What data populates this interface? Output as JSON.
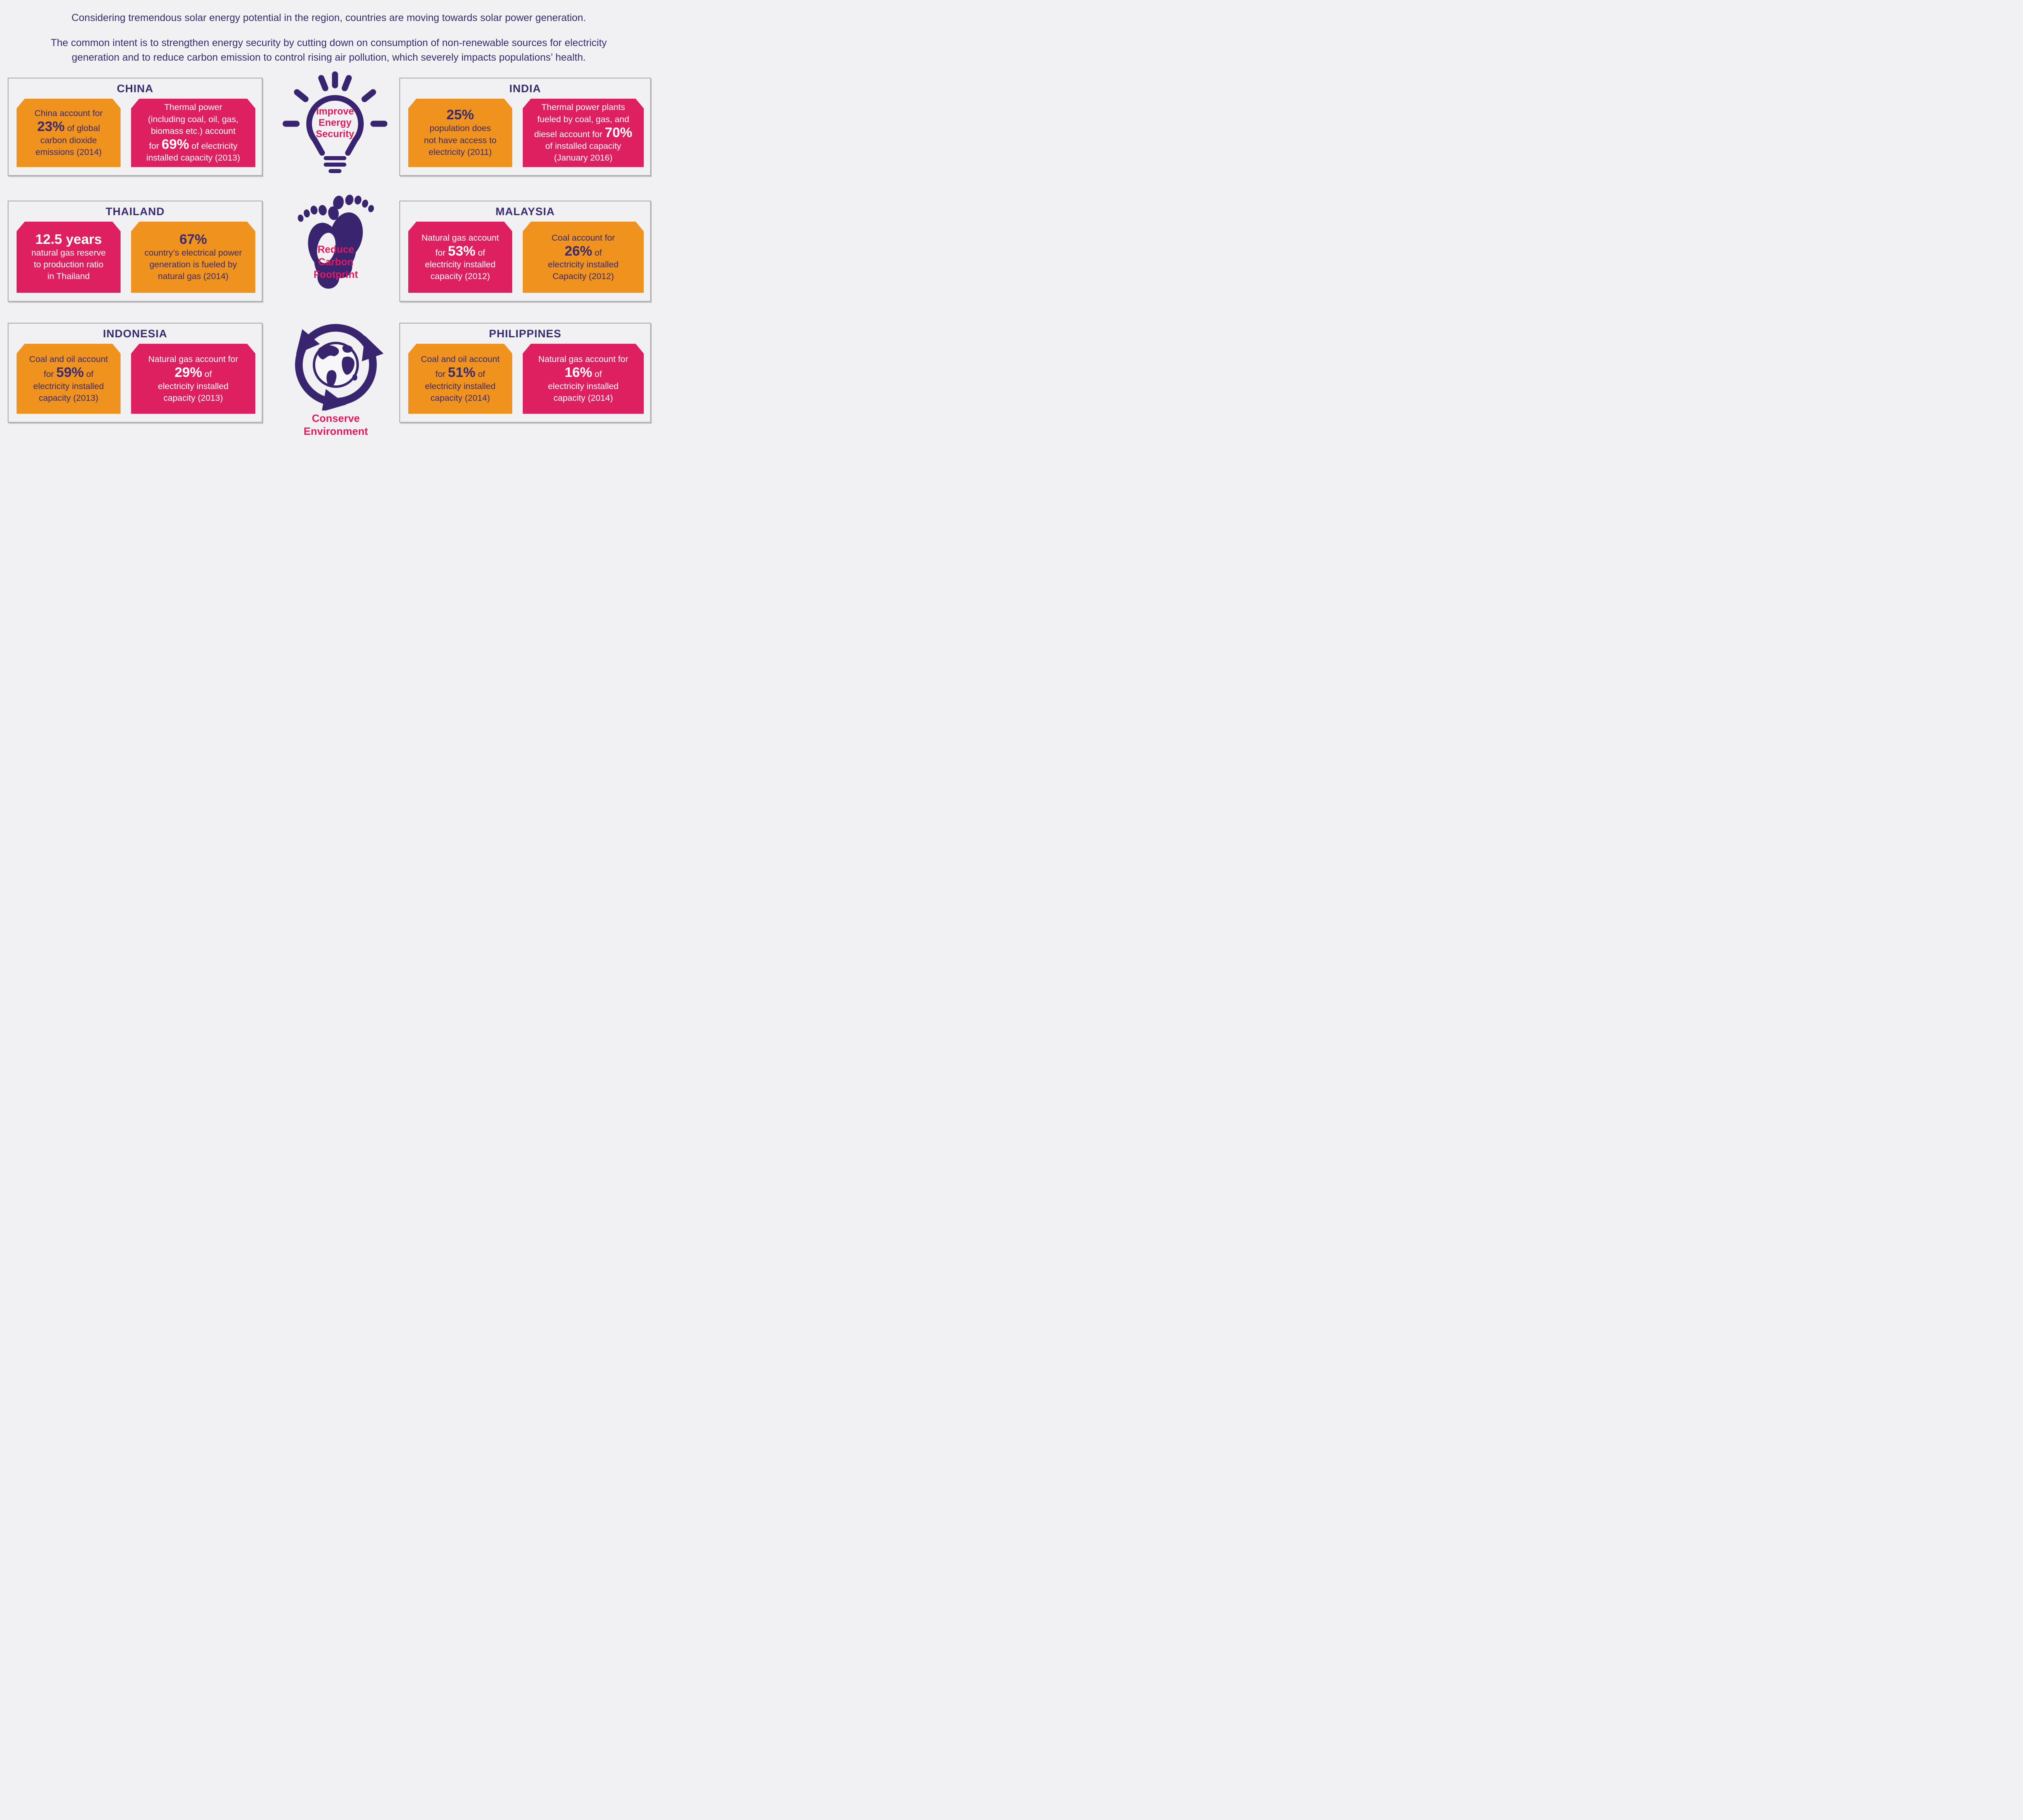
{
  "colors": {
    "background": "#f1f0f2",
    "orange_card": "#f0921e",
    "pink_card": "#de2061",
    "indigo_text": "#3a2a70",
    "purple_icon": "#392470",
    "pink_accent_text": "#e01a5f",
    "card_light_text": "#ffffff",
    "box_border": "#a9a9a9"
  },
  "intro": {
    "p1": "Considering tremendous solar energy potential in the region, countries are moving towards solar power generation.",
    "p2": "The common intent is to strengthen energy security by cutting down on consumption of non-renewable sources for electricity\ngeneration and to reduce carbon emission to control rising air pollution, which severely impacts populations’ health."
  },
  "center_icons": [
    {
      "icon": "light-bulb-icon",
      "label": "Improve\nEnergy\nSecurity"
    },
    {
      "icon": "footprints-icon",
      "label": "Reduce\nCarbon\nFootprint"
    },
    {
      "icon": "globe-arrows-icon",
      "label": "Conserve\nEnvironment"
    }
  ],
  "countries": [
    {
      "name": "CHINA",
      "cards": [
        {
          "color": "orange",
          "lines": [
            [
              {
                "t": "China account for"
              }
            ],
            [
              {
                "t": "23%",
                "b": true
              },
              {
                "t": " of global"
              }
            ],
            [
              {
                "t": "carbon dioxide"
              }
            ],
            [
              {
                "t": "emissions (2014)"
              }
            ]
          ]
        },
        {
          "color": "pink",
          "lines": [
            [
              {
                "t": "Thermal power"
              }
            ],
            [
              {
                "t": "(including coal, oil, gas,"
              }
            ],
            [
              {
                "t": "biomass etc.) account"
              }
            ],
            [
              {
                "t": "for "
              },
              {
                "t": "69%",
                "b": true
              },
              {
                "t": " of electricity"
              }
            ],
            [
              {
                "t": "installed capacity (2013)"
              }
            ]
          ]
        }
      ]
    },
    {
      "name": "INDIA",
      "cards": [
        {
          "color": "orange",
          "lines": [
            [
              {
                "t": "25%",
                "b": true
              }
            ],
            [
              {
                "t": "population does"
              }
            ],
            [
              {
                "t": "not have access to"
              }
            ],
            [
              {
                "t": "electricity (2011)"
              }
            ]
          ]
        },
        {
          "color": "pink",
          "lines": [
            [
              {
                "t": "Thermal power plants"
              }
            ],
            [
              {
                "t": "fueled by coal, gas, and"
              }
            ],
            [
              {
                "t": "diesel account for "
              },
              {
                "t": "70%",
                "b": true
              }
            ],
            [
              {
                "t": "of installed capacity"
              }
            ],
            [
              {
                "t": "(January 2016)"
              }
            ]
          ]
        }
      ]
    },
    {
      "name": "THAILAND",
      "cards": [
        {
          "color": "pink",
          "lines": [
            [
              {
                "t": "12.5 years",
                "b": true
              }
            ],
            [
              {
                "t": "natural gas reserve"
              }
            ],
            [
              {
                "t": "to production ratio"
              }
            ],
            [
              {
                "t": "in Thailand"
              }
            ]
          ]
        },
        {
          "color": "orange",
          "lines": [
            [
              {
                "t": "67%",
                "b": true
              }
            ],
            [
              {
                "t": "country’s electrical power"
              }
            ],
            [
              {
                "t": "generation is fueled by"
              }
            ],
            [
              {
                "t": "natural gas (2014)"
              }
            ]
          ]
        }
      ]
    },
    {
      "name": "MALAYSIA",
      "cards": [
        {
          "color": "pink",
          "lines": [
            [
              {
                "t": "Natural gas account"
              }
            ],
            [
              {
                "t": "for "
              },
              {
                "t": "53%",
                "b": true
              },
              {
                "t": " of"
              }
            ],
            [
              {
                "t": "electricity installed"
              }
            ],
            [
              {
                "t": "capacity (2012)"
              }
            ]
          ]
        },
        {
          "color": "orange",
          "lines": [
            [
              {
                "t": "Coal account for"
              }
            ],
            [
              {
                "t": "26%",
                "b": true
              },
              {
                "t": " of"
              }
            ],
            [
              {
                "t": "electricity installed"
              }
            ],
            [
              {
                "t": "Capacity (2012)"
              }
            ]
          ]
        }
      ]
    },
    {
      "name": "INDONESIA",
      "cards": [
        {
          "color": "orange",
          "lines": [
            [
              {
                "t": "Coal and oil account"
              }
            ],
            [
              {
                "t": "for "
              },
              {
                "t": "59%",
                "b": true
              },
              {
                "t": " of"
              }
            ],
            [
              {
                "t": "electricity installed"
              }
            ],
            [
              {
                "t": "capacity (2013)"
              }
            ]
          ]
        },
        {
          "color": "pink",
          "lines": [
            [
              {
                "t": "Natural gas account for"
              }
            ],
            [
              {
                "t": "29%",
                "b": true
              },
              {
                "t": " of"
              }
            ],
            [
              {
                "t": "electricity installed"
              }
            ],
            [
              {
                "t": "capacity (2013)"
              }
            ]
          ]
        }
      ]
    },
    {
      "name": "PHILIPPINES",
      "cards": [
        {
          "color": "orange",
          "lines": [
            [
              {
                "t": "Coal and oil account"
              }
            ],
            [
              {
                "t": "for "
              },
              {
                "t": "51%",
                "b": true
              },
              {
                "t": " of"
              }
            ],
            [
              {
                "t": "electricity installed"
              }
            ],
            [
              {
                "t": "capacity (2014)"
              }
            ]
          ]
        },
        {
          "color": "pink",
          "lines": [
            [
              {
                "t": "Natural gas account for"
              }
            ],
            [
              {
                "t": "16%",
                "b": true
              },
              {
                "t": " of"
              }
            ],
            [
              {
                "t": "electricity installed"
              }
            ],
            [
              {
                "t": "capacity (2014)"
              }
            ]
          ]
        }
      ]
    }
  ]
}
